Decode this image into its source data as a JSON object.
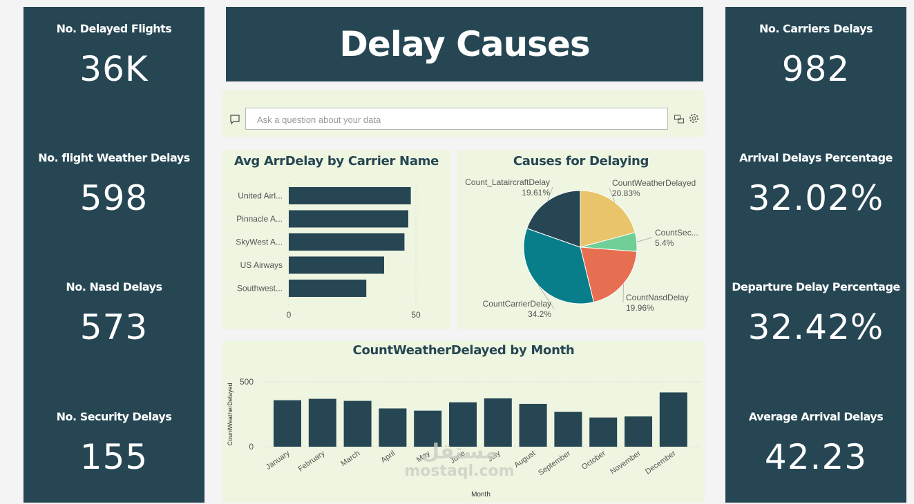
{
  "left_kpis": [
    {
      "label": "No. Delayed Flights",
      "value": "36K"
    },
    {
      "label": "No. flight Weather Delays",
      "value": "598"
    },
    {
      "label": "No. Nasd Delays",
      "value": "573"
    },
    {
      "label": "No. Security Delays",
      "value": "155"
    }
  ],
  "right_kpis": [
    {
      "label": "No. Carriers Delays",
      "value": "982"
    },
    {
      "label": "Arrival Delays Percentage",
      "value": "32.02%"
    },
    {
      "label": "Departure Delay Percentage",
      "value": "32.42%"
    },
    {
      "label": "Average Arrival Delays",
      "value": "42.23"
    }
  ],
  "title": "Delay Causes",
  "qa": {
    "placeholder": "Ask a question about your data",
    "icons": [
      "chat-icon",
      "share-icon",
      "gear-icon"
    ]
  },
  "colors": {
    "dark": "#264653",
    "panel": "#eef5e0",
    "yellow": "#e9c46a",
    "green": "#6fcf97",
    "orange": "#e76f51",
    "teal": "#087e8b"
  },
  "watermark": {
    "text": "mostaql.com"
  },
  "chart_data": [
    {
      "type": "bar",
      "orientation": "horizontal",
      "title": "Avg ArrDelay by Carrier Name",
      "categories": [
        "United Airl...",
        "Pinnacle A...",
        "SkyWest A...",
        "US Airways",
        "Southwest..."
      ],
      "values": [
        48,
        47,
        45.5,
        37.5,
        30.5
      ],
      "xlim": [
        0,
        55
      ],
      "xticks": [
        "0",
        "50"
      ],
      "grid": true
    },
    {
      "type": "pie",
      "title": "Causes for Delaying",
      "slices": [
        {
          "label": "CountWeatherDelayed",
          "value": 20.83,
          "pct_label": "20.83%",
          "color": "#e9c46a"
        },
        {
          "label": "CountSec...",
          "value": 5.4,
          "pct_label": "5.4%",
          "color": "#6fcf97"
        },
        {
          "label": "CountNasdDelay",
          "value": 19.96,
          "pct_label": "19.96%",
          "color": "#e76f51"
        },
        {
          "label": "CountCarrierDelay",
          "value": 34.2,
          "pct_label": "34.2%",
          "color": "#087e8b"
        },
        {
          "label": "Count_LataircraftDelay",
          "value": 19.61,
          "pct_label": "19.61%",
          "color": "#264653"
        }
      ]
    },
    {
      "type": "bar",
      "title": "CountWeatherDelayed by Month",
      "xlabel": "Month",
      "ylabel": "CountWeatherDelayed",
      "categories": [
        "January",
        "February",
        "March",
        "April",
        "May",
        "June",
        "July",
        "August",
        "September",
        "October",
        "November",
        "December"
      ],
      "values": [
        358,
        369,
        353,
        295,
        278,
        342,
        372,
        330,
        268,
        225,
        233,
        418
      ],
      "ylim": [
        0,
        500
      ],
      "yticks": [
        "0",
        "500"
      ],
      "grid": true
    }
  ]
}
